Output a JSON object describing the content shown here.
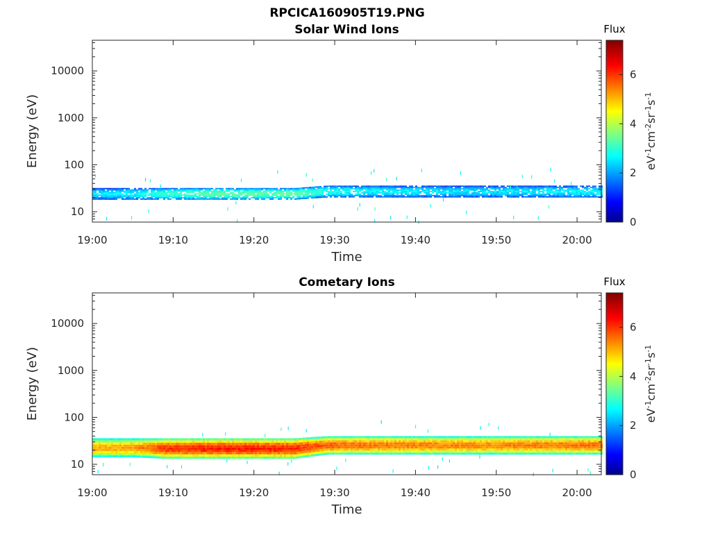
{
  "figure_title": "RPCICA160905T19.PNG",
  "colorbar": {
    "label": "Flux",
    "unit_base": "eV",
    "unit_parts": [
      "-1",
      "cm",
      "-2",
      "sr",
      "-1",
      "s",
      "-1"
    ],
    "ticks": [
      "0",
      "2",
      "4",
      "6"
    ],
    "range": [
      0,
      7.4
    ],
    "colormap": "jet"
  },
  "chart_data": [
    {
      "type": "heatmap",
      "title": "Solar Wind Ions",
      "xlabel": "Time",
      "ylabel": "Energy (eV)",
      "y_scale": "log",
      "ylim": [
        6,
        45000
      ],
      "xlim": [
        "19:00",
        "20:03"
      ],
      "x_ticks": [
        "19:00",
        "19:10",
        "19:20",
        "19:30",
        "19:40",
        "19:50",
        "20:00"
      ],
      "y_ticks": [
        "10",
        "100",
        "1000",
        "10000"
      ],
      "band": [
        {
          "time": "19:00",
          "energy_low": 18,
          "energy_high": 32,
          "flux": 2.6
        },
        {
          "time": "19:05",
          "energy_low": 18,
          "energy_high": 32,
          "flux": 2.8
        },
        {
          "time": "19:10",
          "energy_low": 18,
          "energy_high": 32,
          "flux": 3.2
        },
        {
          "time": "19:15",
          "energy_low": 18,
          "energy_high": 32,
          "flux": 3.5
        },
        {
          "time": "19:20",
          "energy_low": 18,
          "energy_high": 32,
          "flux": 3.4
        },
        {
          "time": "19:25",
          "energy_low": 18,
          "energy_high": 32,
          "flux": 3.5
        },
        {
          "time": "19:29",
          "energy_low": 20,
          "energy_high": 36,
          "flux": 3.0
        },
        {
          "time": "19:35",
          "energy_low": 20,
          "energy_high": 36,
          "flux": 2.7
        },
        {
          "time": "19:40",
          "energy_low": 20,
          "energy_high": 36,
          "flux": 2.7
        },
        {
          "time": "19:45",
          "energy_low": 20,
          "energy_high": 36,
          "flux": 2.6
        },
        {
          "time": "19:50",
          "energy_low": 20,
          "energy_high": 36,
          "flux": 2.6
        },
        {
          "time": "19:55",
          "energy_low": 20,
          "energy_high": 36,
          "flux": 2.7
        },
        {
          "time": "20:03",
          "energy_low": 20,
          "energy_high": 36,
          "flux": 2.8
        }
      ]
    },
    {
      "type": "heatmap",
      "title": "Cometary Ions",
      "xlabel": "Time",
      "ylabel": "Energy (eV)",
      "y_scale": "log",
      "ylim": [
        6,
        45000
      ],
      "xlim": [
        "19:00",
        "20:03"
      ],
      "x_ticks": [
        "19:00",
        "19:10",
        "19:20",
        "19:30",
        "19:40",
        "19:50",
        "20:00"
      ],
      "y_ticks": [
        "10",
        "100",
        "1000",
        "10000"
      ],
      "band": [
        {
          "time": "19:00",
          "energy_low": 14,
          "energy_high": 36,
          "flux": 5.2
        },
        {
          "time": "19:05",
          "energy_low": 14,
          "energy_high": 36,
          "flux": 5.3
        },
        {
          "time": "19:09",
          "energy_low": 13,
          "energy_high": 36,
          "flux": 6.1
        },
        {
          "time": "19:15",
          "energy_low": 13,
          "energy_high": 36,
          "flux": 6.3
        },
        {
          "time": "19:20",
          "energy_low": 13,
          "energy_high": 36,
          "flux": 6.3
        },
        {
          "time": "19:25",
          "energy_low": 13,
          "energy_high": 36,
          "flux": 6.2
        },
        {
          "time": "19:29",
          "energy_low": 16,
          "energy_high": 40,
          "flux": 5.8
        },
        {
          "time": "19:35",
          "energy_low": 16,
          "energy_high": 40,
          "flux": 5.6
        },
        {
          "time": "19:40",
          "energy_low": 16,
          "energy_high": 40,
          "flux": 5.6
        },
        {
          "time": "19:45",
          "energy_low": 16,
          "energy_high": 40,
          "flux": 5.5
        },
        {
          "time": "19:50",
          "energy_low": 16,
          "energy_high": 40,
          "flux": 5.5
        },
        {
          "time": "19:55",
          "energy_low": 16,
          "energy_high": 40,
          "flux": 5.6
        },
        {
          "time": "20:03",
          "energy_low": 16,
          "energy_high": 40,
          "flux": 5.7
        }
      ]
    }
  ]
}
